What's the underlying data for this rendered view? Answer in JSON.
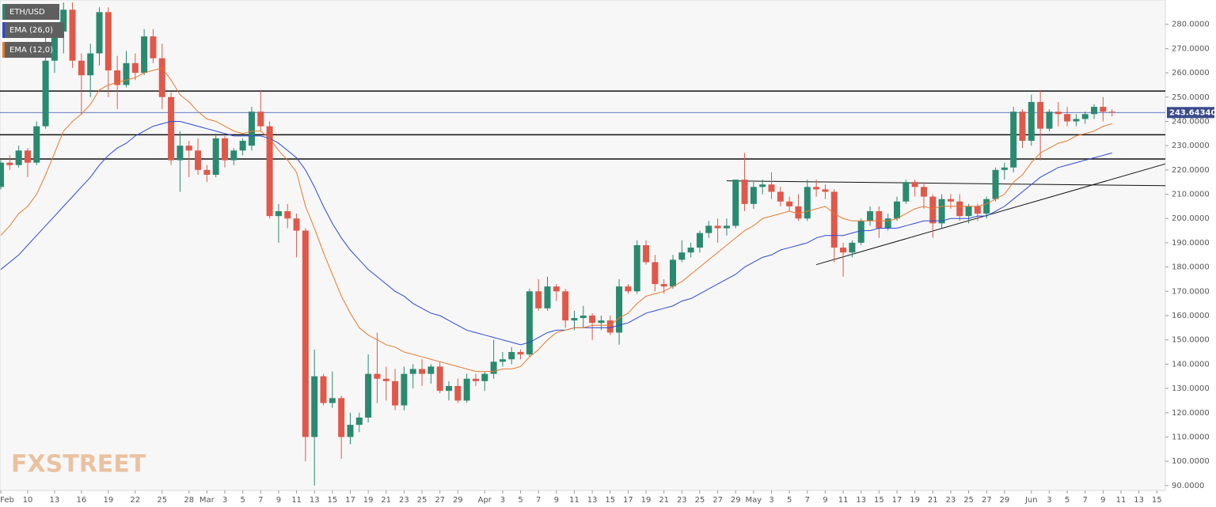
{
  "chart_data": {
    "type": "candlestick",
    "categories": [
      "Feb",
      null,
      null,
      "10",
      null,
      null,
      "13",
      null,
      null,
      "16",
      null,
      null,
      "19",
      null,
      null,
      "22",
      null,
      null,
      "25",
      null,
      null,
      "28",
      null,
      "Mar",
      null,
      "3",
      null,
      "5",
      null,
      "7",
      null,
      "9",
      null,
      "11",
      null,
      "13",
      null,
      "15",
      null,
      "17",
      null,
      "19",
      null,
      "21",
      null,
      "23",
      null,
      "25",
      null,
      "27",
      null,
      "29",
      null,
      null,
      "Apr",
      null,
      "3",
      null,
      "5",
      null,
      "7",
      null,
      "9",
      null,
      "11",
      null,
      "13",
      null,
      "15",
      null,
      "17",
      null,
      "19",
      null,
      "21",
      null,
      "23",
      null,
      "25",
      null,
      "27",
      null,
      "29",
      null,
      "May",
      null,
      "3",
      null,
      "5",
      null,
      "7",
      null,
      "9",
      null,
      "11",
      null,
      "13",
      null,
      "15",
      null,
      "17",
      null,
      "19",
      null,
      "21",
      null,
      "23",
      null,
      "25",
      null,
      "27",
      null,
      "29",
      null,
      null,
      "Jun",
      null,
      "3",
      null,
      "5",
      null,
      "7",
      null,
      "9",
      null,
      "11",
      null,
      "13",
      null,
      "15"
    ],
    "series": [
      {
        "name": "ETH/USD",
        "up_color": "#2a8a70",
        "down_color": "#e0584a",
        "open": [
          213,
          223,
          222,
          228,
          223,
          238,
          265,
          277,
          286,
          265,
          259,
          268,
          285,
          261,
          255,
          264,
          260,
          275,
          266,
          250,
          224,
          230,
          228,
          220,
          218,
          233,
          224,
          228,
          230,
          244,
          238,
          201,
          203,
          200,
          195,
          110,
          135,
          124,
          126,
          110,
          115,
          118,
          136,
          134,
          133,
          123,
          136,
          138,
          136,
          139,
          129,
          131,
          125,
          134,
          133,
          136,
          141,
          142,
          145,
          144,
          170,
          163,
          172,
          170,
          158,
          159,
          160,
          157,
          158,
          153,
          172,
          170,
          189,
          182,
          173,
          172,
          183,
          186,
          188,
          194,
          197,
          196,
          197,
          216,
          206,
          213,
          214,
          211,
          207,
          205,
          200,
          213,
          212,
          211,
          188,
          186,
          190,
          199,
          203,
          196,
          200,
          207,
          215,
          213,
          209,
          198,
          208,
          207,
          201,
          205,
          202,
          208,
          220,
          221,
          244,
          232,
          248,
          237,
          244,
          243,
          240,
          241,
          243,
          246,
          244,
          null,
          null,
          null,
          null,
          null
        ],
        "high": [
          224,
          226,
          230,
          229,
          240,
          277,
          280,
          289,
          289,
          268,
          272,
          287,
          287,
          267,
          269,
          268,
          278,
          278,
          272,
          252,
          236,
          232,
          233,
          222,
          235,
          234,
          229,
          233,
          246,
          253,
          240,
          206,
          206,
          202,
          196,
          146,
          136,
          137,
          127,
          120,
          120,
          144,
          153,
          139,
          138,
          139,
          140,
          142,
          140,
          141,
          133,
          134,
          136,
          136,
          137,
          150,
          145,
          147,
          146,
          171,
          175,
          176,
          173,
          171,
          162,
          164,
          161,
          160,
          160,
          175,
          173,
          191,
          191,
          185,
          175,
          185,
          191,
          190,
          195,
          199,
          200,
          200,
          216,
          227,
          215,
          216,
          219,
          213,
          209,
          210,
          216,
          216,
          214,
          212,
          190,
          191,
          200,
          205,
          205,
          202,
          209,
          216,
          216,
          215,
          210,
          210,
          210,
          210,
          206,
          206,
          209,
          221,
          223,
          246,
          245,
          251,
          253,
          245,
          248,
          246,
          243,
          244,
          247,
          250,
          245,
          null,
          null,
          null,
          null,
          null
        ],
        "low": [
          212,
          220,
          221,
          217,
          222,
          237,
          260,
          268,
          262,
          243,
          250,
          263,
          250,
          245,
          254,
          257,
          259,
          264,
          245,
          222,
          211,
          217,
          218,
          215,
          217,
          221,
          222,
          226,
          228,
          236,
          200,
          190,
          196,
          184,
          100,
          90,
          123,
          122,
          101,
          107,
          112,
          116,
          124,
          125,
          121,
          121,
          130,
          131,
          132,
          128,
          125,
          124,
          124,
          131,
          129,
          134,
          139,
          140,
          142,
          143,
          162,
          162,
          166,
          155,
          154,
          155,
          150,
          154,
          152,
          148,
          169,
          169,
          181,
          170,
          169,
          171,
          182,
          184,
          186,
          192,
          190,
          193,
          196,
          203,
          204,
          210,
          208,
          205,
          203,
          199,
          199,
          209,
          208,
          182,
          176,
          184,
          189,
          197,
          192,
          195,
          199,
          206,
          209,
          204,
          192,
          196,
          204,
          199,
          198,
          199,
          200,
          207,
          216,
          219,
          229,
          230,
          224,
          236,
          238,
          238,
          238,
          239,
          241,
          240,
          242,
          null,
          null,
          null,
          null,
          null
        ],
        "close": [
          223,
          222,
          228,
          223,
          238,
          265,
          277,
          286,
          265,
          259,
          268,
          285,
          261,
          255,
          264,
          260,
          275,
          266,
          250,
          224,
          230,
          228,
          220,
          218,
          233,
          224,
          228,
          232,
          244,
          238,
          201,
          203,
          200,
          195,
          110,
          135,
          124,
          126,
          110,
          115,
          118,
          136,
          134,
          133,
          123,
          136,
          138,
          136,
          139,
          129,
          131,
          125,
          134,
          133,
          136,
          141,
          142,
          145,
          144,
          170,
          163,
          172,
          170,
          158,
          159,
          160,
          157,
          158,
          153,
          172,
          170,
          189,
          182,
          173,
          172,
          183,
          186,
          188,
          194,
          197,
          196,
          197,
          216,
          206,
          213,
          214,
          211,
          207,
          205,
          200,
          213,
          212,
          211,
          188,
          186,
          190,
          199,
          203,
          196,
          200,
          207,
          215,
          213,
          209,
          198,
          208,
          207,
          201,
          205,
          202,
          208,
          220,
          221,
          244,
          232,
          248,
          237,
          244,
          243,
          240,
          241,
          243,
          246,
          244,
          243.6434,
          null,
          null,
          null,
          null,
          null
        ]
      },
      {
        "name": "EMA (26,0)",
        "color": "#2c49d6",
        "values": [
          179,
          182,
          185,
          189,
          193,
          197,
          201,
          205,
          209,
          213,
          217,
          222,
          226,
          229,
          231,
          234,
          236,
          238,
          239,
          240,
          240,
          239,
          238,
          237,
          236,
          235,
          234,
          234,
          234,
          234,
          233,
          231,
          228,
          225,
          220,
          213,
          205,
          198,
          192,
          187,
          183,
          179,
          176,
          173,
          170,
          168,
          165,
          163,
          161,
          160,
          158,
          156,
          154,
          153,
          152,
          151,
          150,
          149,
          148,
          149,
          151,
          153,
          154,
          154,
          155,
          155,
          155,
          155,
          155,
          156,
          157,
          159,
          161,
          162,
          163,
          164,
          166,
          167,
          169,
          171,
          173,
          175,
          177,
          180,
          182,
          184,
          185,
          187,
          188,
          189,
          190,
          192,
          193,
          193,
          193,
          194,
          195,
          195,
          196,
          196,
          196,
          197,
          198,
          199,
          199,
          199,
          200,
          200,
          200,
          201,
          201,
          203,
          205,
          208,
          211,
          214,
          217,
          219,
          221,
          222,
          223,
          224,
          225,
          226,
          227,
          null,
          null,
          null,
          null,
          null
        ]
      },
      {
        "name": "EMA (12,0)",
        "color": "#e8792b",
        "values": [
          193,
          197,
          202,
          205,
          210,
          218,
          227,
          236,
          240,
          243,
          247,
          253,
          255,
          256,
          257,
          258,
          260,
          261,
          262,
          257,
          251,
          248,
          244,
          241,
          240,
          238,
          236,
          235,
          236,
          236,
          233,
          228,
          224,
          219,
          205,
          196,
          186,
          177,
          168,
          161,
          155,
          152,
          150,
          148,
          147,
          145,
          144,
          143,
          142,
          141,
          140,
          139,
          138,
          137,
          137,
          137,
          138,
          138,
          139,
          143,
          146,
          150,
          153,
          154,
          155,
          155,
          156,
          156,
          156,
          159,
          161,
          165,
          168,
          169,
          170,
          172,
          174,
          177,
          180,
          183,
          186,
          189,
          192,
          195,
          197,
          200,
          201,
          202,
          203,
          202,
          203,
          204,
          205,
          202,
          200,
          199,
          199,
          199,
          199,
          199,
          200,
          202,
          204,
          205,
          204,
          205,
          205,
          205,
          205,
          205,
          206,
          208,
          210,
          215,
          218,
          223,
          227,
          229,
          231,
          232,
          234,
          235,
          236,
          238,
          239,
          null,
          null,
          null,
          null,
          null
        ]
      }
    ],
    "levels": [
      252.5,
      234.5,
      224.5
    ],
    "trendlines": [
      {
        "x": [
          81,
          130
        ],
        "y": [
          215.5,
          213.5
        ]
      },
      {
        "x": [
          91,
          130
        ],
        "y": [
          181,
          222.5
        ]
      }
    ],
    "last_price": {
      "value": 243.6434,
      "label": "243.64340"
    },
    "ylim": [
      88,
      290
    ],
    "yticks": [
      {
        "value": 90,
        "label": "90.0000"
      },
      {
        "value": 100,
        "label": "100.0000"
      },
      {
        "value": 110,
        "label": "110.0000"
      },
      {
        "value": 120,
        "label": "120.0000"
      },
      {
        "value": 130,
        "label": "130.0000"
      },
      {
        "value": 140,
        "label": "140.0000"
      },
      {
        "value": 150,
        "label": "150.0000"
      },
      {
        "value": 160,
        "label": "160.0000"
      },
      {
        "value": 170,
        "label": "170.0000"
      },
      {
        "value": 180,
        "label": "180.0000"
      },
      {
        "value": 190,
        "label": "190.0000"
      },
      {
        "value": 200,
        "label": "200.0000"
      },
      {
        "value": 210,
        "label": "210.0000"
      },
      {
        "value": 220,
        "label": "220.0000"
      },
      {
        "value": 230,
        "label": "230.0000"
      },
      {
        "value": 240,
        "label": "240.0000"
      },
      {
        "value": 250,
        "label": "250.0000"
      },
      {
        "value": 260,
        "label": "260.0000"
      },
      {
        "value": 270,
        "label": "270.0000"
      },
      {
        "value": 280,
        "label": "280.0000"
      }
    ],
    "watermark": "FXSTREET"
  }
}
